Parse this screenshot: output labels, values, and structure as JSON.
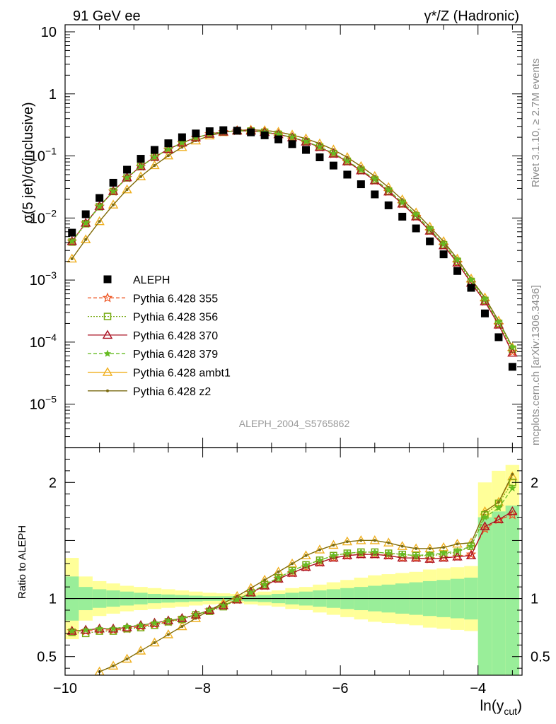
{
  "header": {
    "left_title": "91 GeV ee",
    "right_title": "γ*/Z (Hadronic)",
    "side_label_top": "Rivet 3.1.10, ≥ 2.7M events",
    "side_label_bottom": "mcplots.cern.ch [arXiv:1306.3436]",
    "analysis_ref": "ALEPH_2004_S5765862"
  },
  "chart_data": [
    {
      "type": "scatter",
      "panel": "main",
      "ylabel": "σ(5 jet)/σ(inclusive)",
      "yscale": "log",
      "ylim": [
        2e-06,
        13
      ],
      "xlim": [
        -10.0,
        -3.36
      ],
      "y_ticks": [
        {
          "v": 10,
          "label": "10"
        },
        {
          "v": 1,
          "label": "1"
        },
        {
          "v": 0.1,
          "label": "10",
          "sup": "−1"
        },
        {
          "v": 0.01,
          "label": "10",
          "sup": "−2"
        },
        {
          "v": 0.001,
          "label": "10",
          "sup": "−3"
        },
        {
          "v": 0.0001,
          "label": "10",
          "sup": "−4"
        },
        {
          "v": 1e-05,
          "label": "10",
          "sup": "−5"
        }
      ],
      "x": [
        -9.9,
        -9.7,
        -9.5,
        -9.3,
        -9.1,
        -8.9,
        -8.7,
        -8.5,
        -8.3,
        -8.1,
        -7.9,
        -7.7,
        -7.5,
        -7.3,
        -7.1,
        -6.9,
        -6.7,
        -6.5,
        -6.3,
        -6.1,
        -5.9,
        -5.7,
        -5.5,
        -5.3,
        -5.1,
        -4.9,
        -4.7,
        -4.5,
        -4.3,
        -4.1,
        -3.9,
        -3.7,
        -3.5
      ],
      "series": [
        {
          "name": "ALEPH",
          "values": [
            0.0058,
            0.0115,
            0.021,
            0.037,
            0.06,
            0.09,
            0.125,
            0.16,
            0.2,
            0.23,
            0.25,
            0.26,
            0.255,
            0.24,
            0.215,
            0.185,
            0.155,
            0.125,
            0.095,
            0.07,
            0.05,
            0.035,
            0.024,
            0.016,
            0.0105,
            0.0068,
            0.0042,
            0.0026,
            0.0014,
            0.00075,
            0.00029,
            0.00012,
            4e-05
          ],
          "color": "#000000",
          "marker": "square"
        },
        {
          "name": "Pythia 6.428 355",
          "values": [
            0.0042,
            0.0082,
            0.0153,
            0.0268,
            0.0444,
            0.0675,
            0.0956,
            0.127,
            0.162,
            0.196,
            0.225,
            0.244,
            0.253,
            0.252,
            0.24,
            0.222,
            0.198,
            0.169,
            0.138,
            0.108,
            0.081,
            0.058,
            0.04,
            0.0265,
            0.0169,
            0.0105,
            0.0062,
            0.0036,
            0.0019,
            0.0009,
            0.00045,
            0.00019,
            7e-05
          ],
          "color": "#ee5522",
          "marker": "star",
          "dash": "5,3"
        },
        {
          "name": "Pythia 6.428 356",
          "values": [
            0.0041,
            0.0081,
            0.0152,
            0.0267,
            0.0443,
            0.0674,
            0.0955,
            0.127,
            0.162,
            0.196,
            0.225,
            0.244,
            0.253,
            0.252,
            0.241,
            0.223,
            0.199,
            0.17,
            0.139,
            0.109,
            0.082,
            0.059,
            0.041,
            0.027,
            0.0172,
            0.0108,
            0.0064,
            0.0037,
            0.002,
            0.00095,
            0.00047,
            0.0002,
            7.7e-05
          ],
          "color": "#77aa11",
          "marker": "open-square",
          "dash": "2,2"
        },
        {
          "name": "Pythia 6.428 370",
          "values": [
            0.0042,
            0.0083,
            0.0155,
            0.027,
            0.0448,
            0.068,
            0.096,
            0.128,
            0.163,
            0.197,
            0.226,
            0.245,
            0.254,
            0.253,
            0.241,
            0.222,
            0.198,
            0.169,
            0.138,
            0.108,
            0.081,
            0.058,
            0.04,
            0.0265,
            0.0169,
            0.0105,
            0.0062,
            0.0036,
            0.0019,
            0.0009,
            0.00045,
            0.00019,
            6.7e-05
          ],
          "color": "#aa1122",
          "marker": "open-triangle",
          "dash": ""
        },
        {
          "name": "Pythia 6.428 379",
          "values": [
            0.0042,
            0.0083,
            0.0154,
            0.0269,
            0.0446,
            0.0678,
            0.0958,
            0.128,
            0.163,
            0.197,
            0.226,
            0.245,
            0.254,
            0.253,
            0.242,
            0.224,
            0.2,
            0.171,
            0.14,
            0.11,
            0.083,
            0.06,
            0.042,
            0.028,
            0.0178,
            0.0112,
            0.0066,
            0.0038,
            0.0021,
            0.001,
            0.00049,
            0.00021,
            8.2e-05
          ],
          "color": "#66bb22",
          "marker": "star",
          "dash": "5,3"
        },
        {
          "name": "Pythia 6.428 ambt1",
          "values": [
            0.0022,
            0.0045,
            0.0088,
            0.0163,
            0.0287,
            0.0465,
            0.0703,
            0.101,
            0.138,
            0.176,
            0.212,
            0.24,
            0.258,
            0.263,
            0.258,
            0.243,
            0.219,
            0.19,
            0.158,
            0.126,
            0.095,
            0.068,
            0.047,
            0.0312,
            0.0198,
            0.0122,
            0.0072,
            0.0042,
            0.0022,
            0.00105,
            0.00052,
            0.00022,
            8.2e-05
          ],
          "color": "#f0b020",
          "marker": "open-triangle",
          "dash": ""
        },
        {
          "name": "Pythia 6.428 z2",
          "values": [
            0.0022,
            0.0045,
            0.0088,
            0.0163,
            0.0287,
            0.0465,
            0.0703,
            0.101,
            0.138,
            0.176,
            0.212,
            0.24,
            0.258,
            0.263,
            0.258,
            0.243,
            0.219,
            0.19,
            0.158,
            0.126,
            0.095,
            0.068,
            0.047,
            0.0312,
            0.0198,
            0.0122,
            0.0072,
            0.0042,
            0.0022,
            0.00105,
            0.00052,
            0.00022,
            8.4e-05
          ],
          "color": "#7a6a10",
          "marker": "dot",
          "dash": ""
        }
      ]
    },
    {
      "type": "line",
      "panel": "ratio",
      "ylabel": "Ratio to ALEPH",
      "xlabel": "ln(y",
      "xlabel_sub": "cut",
      "xlabel_end": ")",
      "ylim": [
        0.34,
        2.3
      ],
      "xlim": [
        -10.0,
        -3.36
      ],
      "y_ticks": [
        {
          "v": 2,
          "label": "2"
        },
        {
          "v": 1,
          "label": "1"
        },
        {
          "v": 0.5,
          "label": "0.5"
        }
      ],
      "x_ticks": [
        {
          "v": -10,
          "label": "−10"
        },
        {
          "v": -8,
          "label": "−8"
        },
        {
          "v": -6,
          "label": "−6"
        },
        {
          "v": -4,
          "label": "−4"
        }
      ],
      "x": [
        -9.9,
        -9.7,
        -9.5,
        -9.3,
        -9.1,
        -8.9,
        -8.7,
        -8.5,
        -8.3,
        -8.1,
        -7.9,
        -7.7,
        -7.5,
        -7.3,
        -7.1,
        -6.9,
        -6.7,
        -6.5,
        -6.3,
        -6.1,
        -5.9,
        -5.7,
        -5.5,
        -5.3,
        -5.1,
        -4.9,
        -4.7,
        -4.5,
        -4.3,
        -4.1,
        -3.9,
        -3.7,
        -3.5
      ],
      "band_edges": [
        -10.0,
        -9.8,
        -9.6,
        -9.4,
        -9.2,
        -9.0,
        -8.8,
        -8.6,
        -8.4,
        -8.2,
        -8.0,
        -7.8,
        -7.6,
        -7.4,
        -7.2,
        -7.0,
        -6.8,
        -6.6,
        -6.4,
        -6.2,
        -6.0,
        -5.8,
        -5.6,
        -5.4,
        -5.2,
        -5.0,
        -4.8,
        -4.6,
        -4.4,
        -4.2,
        -4.0,
        -3.8,
        -3.6,
        -3.4
      ],
      "band_green": [
        0.19,
        0.1,
        0.08,
        0.07,
        0.06,
        0.05,
        0.04,
        0.035,
        0.03,
        0.025,
        0.02,
        0.02,
        0.02,
        0.025,
        0.03,
        0.04,
        0.05,
        0.06,
        0.07,
        0.08,
        0.09,
        0.1,
        0.11,
        0.12,
        0.13,
        0.14,
        0.15,
        0.16,
        0.17,
        0.18,
        0.7,
        0.75,
        0.8
      ],
      "band_yellow": [
        0.35,
        0.19,
        0.15,
        0.13,
        0.11,
        0.1,
        0.09,
        0.08,
        0.07,
        0.06,
        0.05,
        0.045,
        0.04,
        0.05,
        0.06,
        0.07,
        0.09,
        0.1,
        0.12,
        0.14,
        0.16,
        0.18,
        0.2,
        0.21,
        0.22,
        0.23,
        0.25,
        0.26,
        0.27,
        0.28,
        1.0,
        1.1,
        1.15
      ],
      "series": [
        {
          "name": "Pythia 6.428 355",
          "values": [
            0.72,
            0.72,
            0.73,
            0.73,
            0.74,
            0.76,
            0.78,
            0.8,
            0.83,
            0.86,
            0.9,
            0.94,
            0.99,
            1.05,
            1.11,
            1.17,
            1.22,
            1.27,
            1.31,
            1.35,
            1.37,
            1.38,
            1.38,
            1.37,
            1.35,
            1.35,
            1.34,
            1.35,
            1.36,
            1.38,
            1.6,
            1.68,
            1.72
          ]
        },
        {
          "name": "Pythia 6.428 356",
          "values": [
            0.71,
            0.7,
            0.72,
            0.72,
            0.74,
            0.75,
            0.77,
            0.8,
            0.82,
            0.86,
            0.89,
            0.93,
            0.99,
            1.05,
            1.12,
            1.18,
            1.24,
            1.29,
            1.33,
            1.37,
            1.39,
            1.4,
            1.4,
            1.39,
            1.38,
            1.37,
            1.37,
            1.38,
            1.4,
            1.45,
            1.72,
            1.82,
            2.0
          ]
        },
        {
          "name": "Pythia 6.428 370",
          "values": [
            0.72,
            0.73,
            0.74,
            0.74,
            0.75,
            0.77,
            0.79,
            0.81,
            0.83,
            0.86,
            0.9,
            0.94,
            0.99,
            1.05,
            1.11,
            1.17,
            1.22,
            1.27,
            1.31,
            1.35,
            1.37,
            1.38,
            1.38,
            1.37,
            1.35,
            1.35,
            1.34,
            1.35,
            1.36,
            1.37,
            1.62,
            1.68,
            1.75
          ]
        },
        {
          "name": "Pythia 6.428 379",
          "values": [
            0.72,
            0.73,
            0.74,
            0.74,
            0.76,
            0.77,
            0.79,
            0.81,
            0.83,
            0.86,
            0.9,
            0.94,
            0.99,
            1.05,
            1.12,
            1.18,
            1.24,
            1.29,
            1.33,
            1.37,
            1.39,
            1.4,
            1.4,
            1.39,
            1.38,
            1.37,
            1.38,
            1.39,
            1.41,
            1.45,
            1.7,
            1.78,
            1.95
          ]
        },
        {
          "name": "Pythia 6.428 ambt1",
          "values": [
            0.29,
            0.33,
            0.37,
            0.42,
            0.48,
            0.55,
            0.62,
            0.69,
            0.76,
            0.83,
            0.9,
            0.96,
            1.02,
            1.09,
            1.16,
            1.23,
            1.3,
            1.37,
            1.42,
            1.46,
            1.49,
            1.5,
            1.5,
            1.48,
            1.45,
            1.43,
            1.43,
            1.44,
            1.47,
            1.48,
            1.75,
            1.83,
            2.05
          ]
        },
        {
          "name": "Pythia 6.428 z2",
          "values": [
            0.29,
            0.33,
            0.37,
            0.42,
            0.48,
            0.55,
            0.62,
            0.69,
            0.76,
            0.83,
            0.9,
            0.96,
            1.02,
            1.09,
            1.16,
            1.23,
            1.3,
            1.37,
            1.42,
            1.46,
            1.49,
            1.5,
            1.5,
            1.48,
            1.45,
            1.43,
            1.43,
            1.44,
            1.47,
            1.48,
            1.75,
            1.83,
            2.07
          ]
        }
      ]
    }
  ]
}
